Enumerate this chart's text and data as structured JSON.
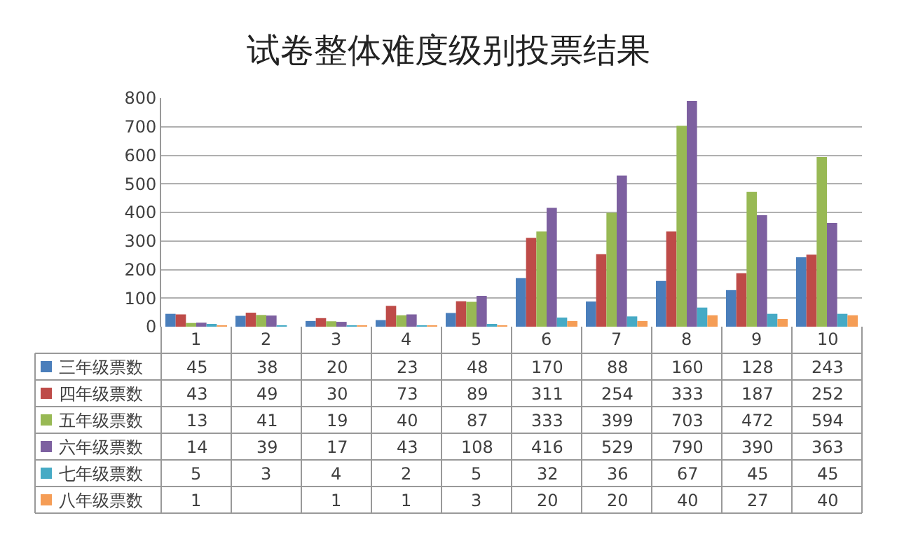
{
  "chart_data": {
    "type": "bar",
    "title": "试卷整体难度级别投票结果",
    "categories": [
      "1",
      "2",
      "3",
      "4",
      "5",
      "6",
      "7",
      "8",
      "9",
      "10"
    ],
    "series": [
      {
        "name": "三年级票数",
        "color": "#4a7ebb",
        "values": [
          45,
          38,
          20,
          23,
          48,
          170,
          88,
          160,
          128,
          243
        ]
      },
      {
        "name": "四年级票数",
        "color": "#be4b48",
        "values": [
          43,
          49,
          30,
          73,
          89,
          311,
          254,
          333,
          187,
          252
        ]
      },
      {
        "name": "五年级票数",
        "color": "#98b954",
        "values": [
          13,
          41,
          19,
          40,
          87,
          333,
          399,
          703,
          472,
          594
        ]
      },
      {
        "name": "六年级票数",
        "color": "#7d60a0",
        "values": [
          14,
          39,
          17,
          43,
          108,
          416,
          529,
          790,
          390,
          363
        ]
      },
      {
        "name": "七年级票数",
        "color": "#46aac5",
        "values": [
          5,
          3,
          4,
          2,
          5,
          32,
          36,
          67,
          45,
          45
        ]
      },
      {
        "name": "八年级票数",
        "color": "#f59d56",
        "values": [
          1,
          null,
          1,
          1,
          3,
          20,
          20,
          40,
          27,
          40
        ]
      }
    ],
    "ylim": [
      0,
      800
    ],
    "yticks": [
      0,
      100,
      200,
      300,
      400,
      500,
      600,
      700,
      800
    ],
    "grid": "y",
    "legend": "bottom left",
    "data_labels": true
  }
}
